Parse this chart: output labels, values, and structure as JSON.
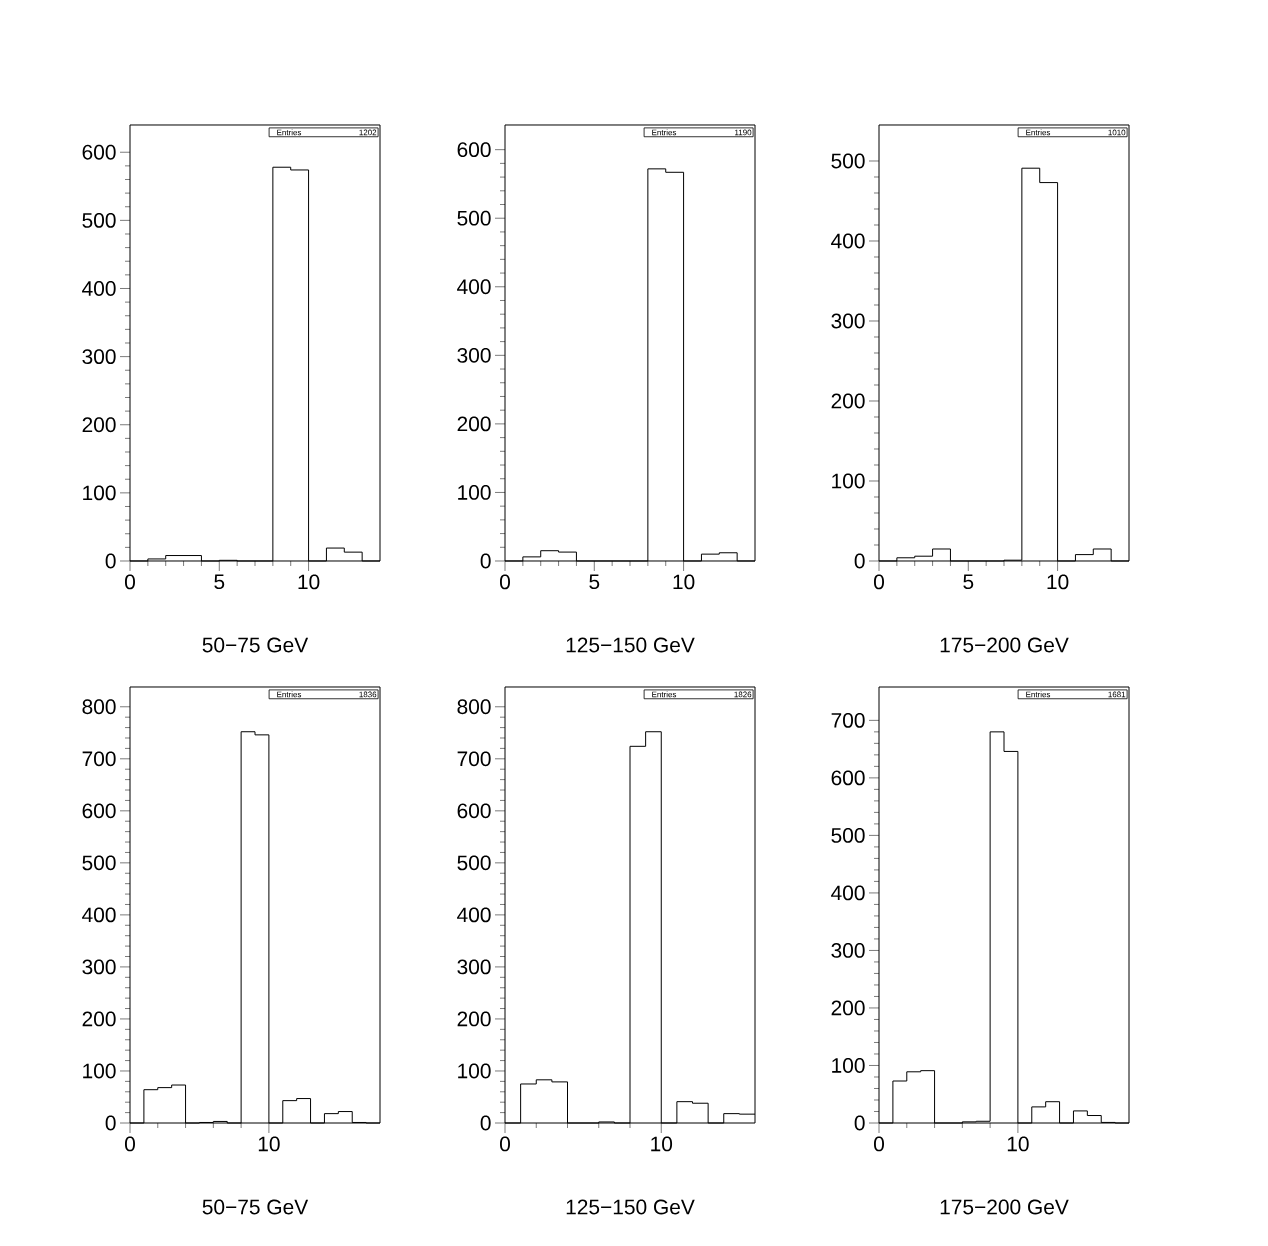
{
  "chart_data": [
    {
      "type": "histogram",
      "xlabel": "50−75 GeV",
      "annotations": [
        "Entries",
        "1202"
      ],
      "color": "#000000",
      "bins": [
        0,
        1,
        2,
        3,
        4,
        5,
        6,
        7,
        8,
        9,
        10,
        11,
        12,
        13,
        14
      ],
      "values": [
        0,
        3,
        8,
        8,
        0,
        1,
        0,
        0,
        578,
        574,
        0,
        19,
        13,
        0
      ],
      "xlim": [
        0,
        14
      ],
      "ylim": [
        0,
        640
      ],
      "xticks": [
        0,
        5,
        10
      ],
      "yticks": [
        0,
        100,
        200,
        300,
        400,
        500,
        600
      ]
    },
    {
      "type": "histogram",
      "xlabel": "125−150 GeV",
      "annotations": [
        "Entries",
        "1190"
      ],
      "color": "#000000",
      "bins": [
        0,
        1,
        2,
        3,
        4,
        5,
        6,
        7,
        8,
        9,
        10,
        11,
        12,
        13,
        14
      ],
      "values": [
        0,
        6,
        15,
        13,
        0,
        0,
        0,
        0,
        572,
        567,
        0,
        10,
        12,
        0
      ],
      "xlim": [
        0,
        14
      ],
      "ylim": [
        0,
        636
      ],
      "xticks": [
        0,
        5,
        10
      ],
      "yticks": [
        0,
        100,
        200,
        300,
        400,
        500,
        600
      ]
    },
    {
      "type": "histogram",
      "xlabel": "175−200 GeV",
      "annotations": [
        "Entries",
        "1010"
      ],
      "color": "#000000",
      "bins": [
        0,
        1,
        2,
        3,
        4,
        5,
        6,
        7,
        8,
        9,
        10,
        11,
        12,
        13,
        14
      ],
      "values": [
        0,
        4,
        6,
        15,
        0,
        0,
        0,
        1,
        491,
        473,
        0,
        8,
        15,
        0
      ],
      "xlim": [
        0,
        14
      ],
      "ylim": [
        0,
        545
      ],
      "xticks": [
        0,
        5,
        10
      ],
      "yticks": [
        0,
        100,
        200,
        300,
        400,
        500
      ]
    },
    {
      "type": "histogram",
      "xlabel": "50−75 GeV",
      "annotations": [
        "Entries",
        "1836"
      ],
      "color": "#000000",
      "bins": [
        0,
        1,
        2,
        3,
        4,
        5,
        6,
        7,
        8,
        9,
        10,
        11,
        12,
        13,
        14,
        15,
        16,
        17,
        18
      ],
      "values": [
        0,
        64,
        68,
        73,
        0,
        1,
        3,
        0,
        752,
        746,
        0,
        43,
        47,
        0,
        18,
        22,
        1,
        0
      ],
      "xlim": [
        0,
        18
      ],
      "ylim": [
        0,
        838
      ],
      "xticks": [
        0,
        10
      ],
      "yticks": [
        0,
        100,
        200,
        300,
        400,
        500,
        600,
        700,
        800
      ]
    },
    {
      "type": "histogram",
      "xlabel": "125−150 GeV",
      "annotations": [
        "Entries",
        "1826"
      ],
      "color": "#000000",
      "bins": [
        0,
        1,
        2,
        3,
        4,
        5,
        6,
        7,
        8,
        9,
        10,
        11,
        12,
        13,
        14,
        15,
        16
      ],
      "values": [
        0,
        75,
        83,
        79,
        0,
        0,
        2,
        0,
        724,
        752,
        0,
        41,
        38,
        0,
        18,
        17
      ],
      "xlim": [
        0,
        16
      ],
      "ylim": [
        0,
        838
      ],
      "xticks": [
        0,
        10
      ],
      "yticks": [
        0,
        100,
        200,
        300,
        400,
        500,
        600,
        700,
        800
      ]
    },
    {
      "type": "histogram",
      "xlabel": "175−200 GeV",
      "annotations": [
        "Entries",
        "1681"
      ],
      "color": "#000000",
      "bins": [
        0,
        1,
        2,
        3,
        4,
        5,
        6,
        7,
        8,
        9,
        10,
        11,
        12,
        13,
        14,
        15,
        16,
        17,
        18
      ],
      "values": [
        0,
        73,
        89,
        91,
        0,
        0,
        2,
        3,
        680,
        646,
        0,
        28,
        37,
        0,
        21,
        13,
        1,
        0
      ],
      "xlim": [
        0,
        18
      ],
      "ylim": [
        0,
        758
      ],
      "xticks": [
        0,
        10
      ],
      "yticks": [
        0,
        100,
        200,
        300,
        400,
        500,
        600,
        700
      ]
    }
  ]
}
